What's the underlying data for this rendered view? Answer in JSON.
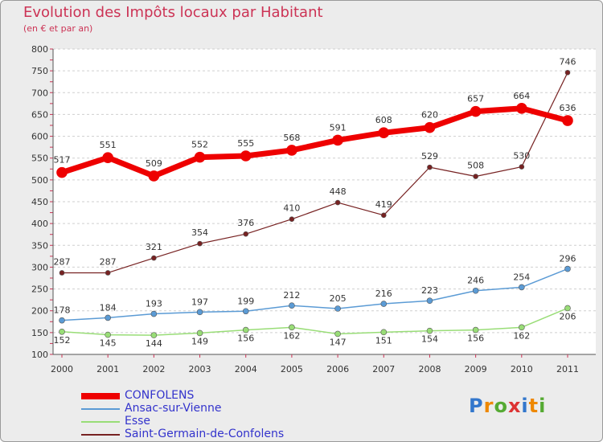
{
  "title": "Evolution des Impôts locaux par Habitant",
  "subtitle": "(en € et par an)",
  "logo": "Proxiti",
  "chart_data": {
    "type": "line",
    "title": "Evolution des Impôts locaux par Habitant",
    "subtitle": "(en € et par an)",
    "xlabel": "",
    "ylabel": "",
    "x": [
      "2000",
      "2001",
      "2002",
      "2003",
      "2004",
      "2005",
      "2006",
      "2007",
      "2008",
      "2009",
      "2010",
      "2011"
    ],
    "ylim": [
      100,
      800
    ],
    "yticks": [
      100,
      150,
      200,
      250,
      300,
      350,
      400,
      450,
      500,
      550,
      600,
      650,
      700,
      750,
      800
    ],
    "grid": "horizontal dashed",
    "legend_position": "bottom-left",
    "series": [
      {
        "name": "CONFOLENS",
        "color": "#ee0000",
        "values": [
          517,
          551,
          509,
          552,
          555,
          568,
          591,
          608,
          620,
          657,
          664,
          636
        ]
      },
      {
        "name": "Ansac-sur-Vienne",
        "color": "#5b9bd5",
        "values": [
          178,
          184,
          193,
          197,
          199,
          212,
          205,
          216,
          223,
          246,
          254,
          296
        ]
      },
      {
        "name": "Esse",
        "color": "#99dd77",
        "values": [
          152,
          145,
          144,
          149,
          156,
          162,
          147,
          151,
          154,
          156,
          162,
          206
        ]
      },
      {
        "name": "Saint-Germain-de-Confolens",
        "color": "#772222",
        "values": [
          287,
          287,
          321,
          354,
          376,
          410,
          448,
          419,
          529,
          508,
          530,
          746
        ]
      }
    ]
  }
}
